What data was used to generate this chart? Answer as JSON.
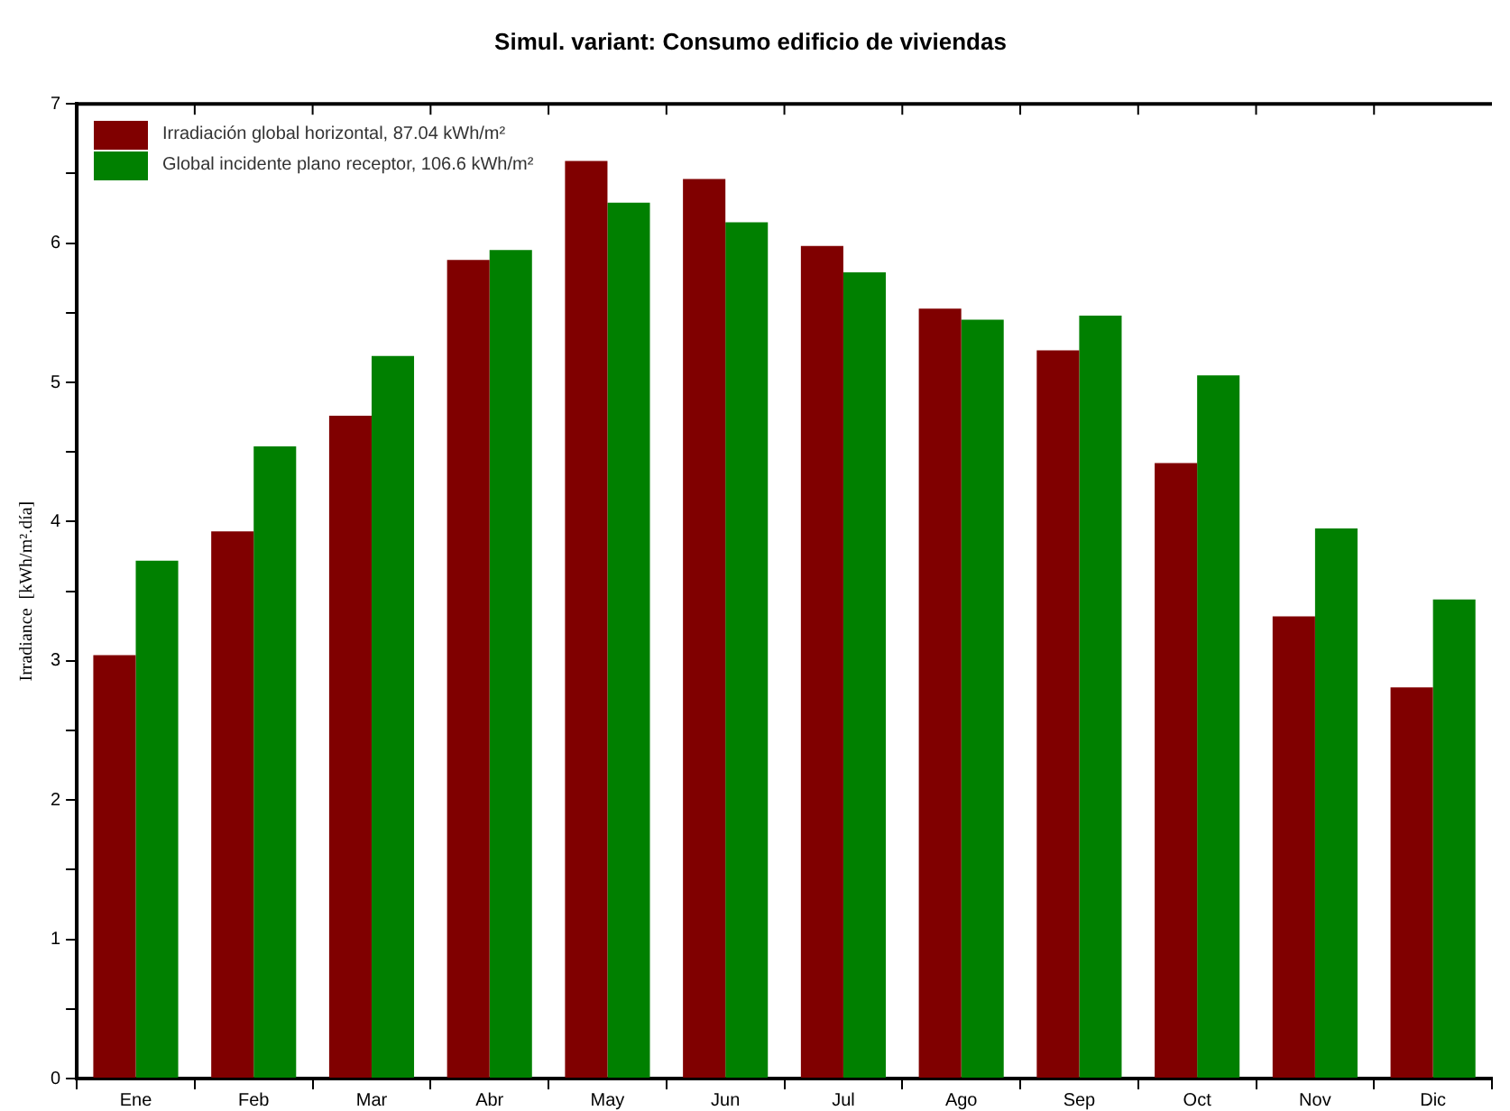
{
  "chart_data": {
    "type": "bar",
    "title": "Simul. variant: Consumo edificio de viviendas",
    "ylabel": "Irradiance  [kWh/m².día]",
    "categories": [
      "Ene",
      "Feb",
      "Mar",
      "Abr",
      "May",
      "Jun",
      "Jul",
      "Ago",
      "Sep",
      "Oct",
      "Nov",
      "Dic"
    ],
    "series": [
      {
        "name": "Irradiación global horizontal,  87.04 kWh/m²",
        "color": "#800000",
        "values": [
          3.04,
          3.93,
          4.76,
          5.88,
          6.59,
          6.46,
          5.98,
          5.53,
          5.23,
          4.42,
          3.32,
          2.81
        ]
      },
      {
        "name": "Global incidente plano receptor,  106.6 kWh/m²",
        "color": "#008000",
        "values": [
          3.72,
          4.54,
          5.19,
          5.95,
          6.29,
          6.15,
          5.79,
          5.45,
          5.48,
          5.05,
          3.95,
          3.44
        ]
      }
    ],
    "ylim": [
      0,
      7
    ],
    "yticks": [
      0,
      {
        "value": 0.5,
        "label": null
      },
      1,
      {
        "value": 1.5,
        "label": null
      },
      2,
      {
        "value": 2.5,
        "label": null
      },
      3,
      {
        "value": 3.5,
        "label": null
      },
      4,
      {
        "value": 4.5,
        "label": null
      },
      5,
      {
        "value": 5.5,
        "label": null
      },
      6,
      {
        "value": 6.5,
        "label": null
      },
      7
    ],
    "grid": false,
    "legend": "top left"
  }
}
